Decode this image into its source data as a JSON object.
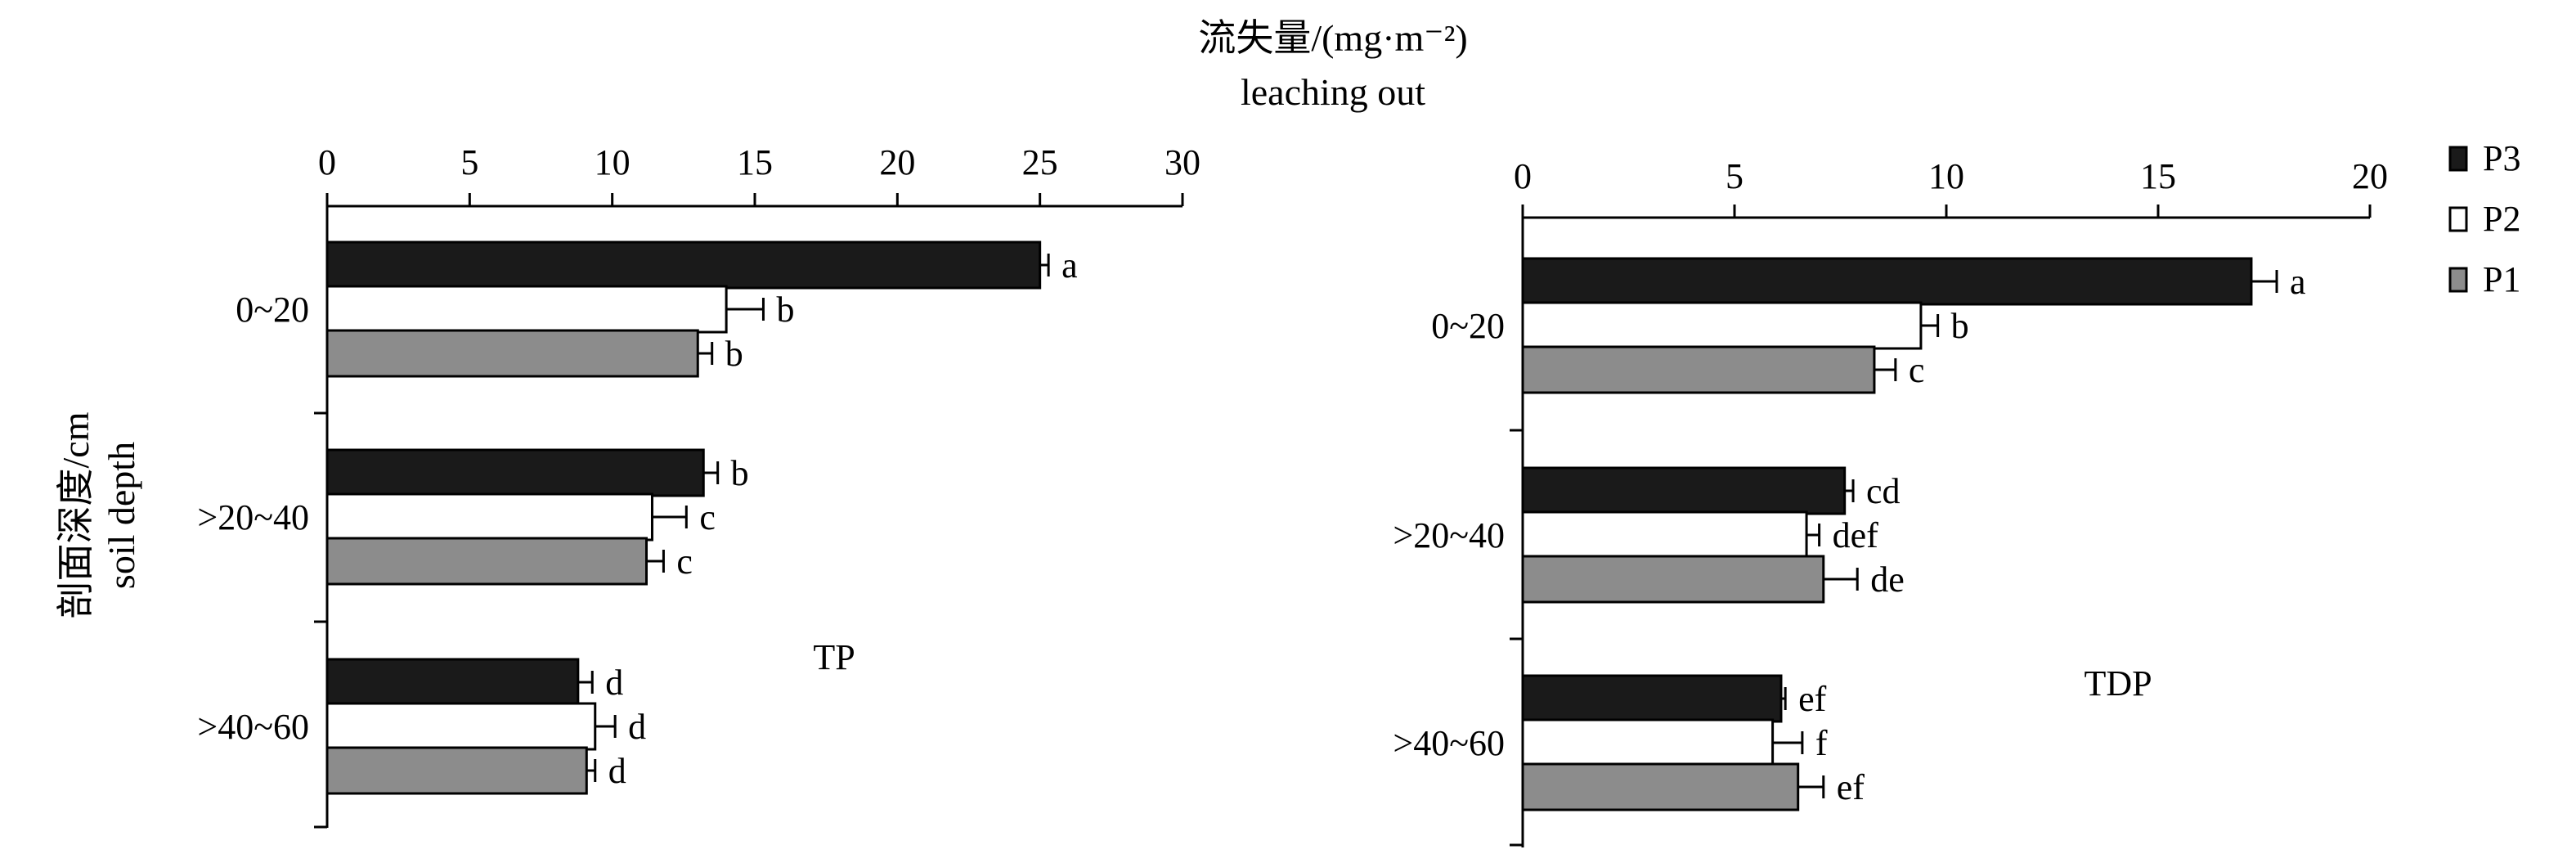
{
  "figure": {
    "top_title": "流失量/(mg·m⁻²)",
    "top_subtitle": "leaching out",
    "ylabel_cn": "剖面深度/cm",
    "ylabel_en": "soil depth"
  },
  "legend": [
    {
      "name": "P3",
      "color": "#1a1a1a"
    },
    {
      "name": "P2",
      "color": "#ffffff"
    },
    {
      "name": "P1",
      "color": "#8c8c8c"
    }
  ],
  "chart_data": [
    {
      "type": "bar",
      "orientation": "horizontal",
      "panel_label": "TP",
      "categories": [
        "0~20",
        ">20~40",
        ">40~60"
      ],
      "xlim": [
        0,
        30
      ],
      "xticks": [
        0,
        5,
        10,
        15,
        20,
        25,
        30
      ],
      "series": [
        {
          "name": "P3",
          "color": "#1a1a1a",
          "values": [
            25.0,
            13.2,
            8.8
          ],
          "errors": [
            0.3,
            0.5,
            0.5
          ],
          "labels": [
            "a",
            "b",
            "d"
          ]
        },
        {
          "name": "P2",
          "color": "#ffffff",
          "values": [
            14.0,
            11.4,
            9.4
          ],
          "errors": [
            1.3,
            1.2,
            0.7
          ],
          "labels": [
            "b",
            "c",
            "d"
          ]
        },
        {
          "name": "P1",
          "color": "#8c8c8c",
          "values": [
            13.0,
            11.2,
            9.1
          ],
          "errors": [
            0.5,
            0.6,
            0.3
          ],
          "labels": [
            "b",
            "c",
            "d"
          ]
        }
      ]
    },
    {
      "type": "bar",
      "orientation": "horizontal",
      "panel_label": "TDP",
      "categories": [
        "0~20",
        ">20~40",
        ">40~60"
      ],
      "xlim": [
        0,
        20
      ],
      "xticks": [
        0,
        5,
        10,
        15,
        20
      ],
      "series": [
        {
          "name": "P3",
          "color": "#1a1a1a",
          "values": [
            17.2,
            7.6,
            6.1
          ],
          "errors": [
            0.6,
            0.2,
            0.1
          ],
          "labels": [
            "a",
            "cd",
            "ef"
          ]
        },
        {
          "name": "P2",
          "color": "#ffffff",
          "values": [
            9.4,
            6.7,
            5.9
          ],
          "errors": [
            0.4,
            0.3,
            0.7
          ],
          "labels": [
            "b",
            "def",
            "f"
          ]
        },
        {
          "name": "P1",
          "color": "#8c8c8c",
          "values": [
            8.3,
            7.1,
            6.5
          ],
          "errors": [
            0.5,
            0.8,
            0.6
          ],
          "labels": [
            "c",
            "de",
            "ef"
          ]
        }
      ]
    }
  ]
}
